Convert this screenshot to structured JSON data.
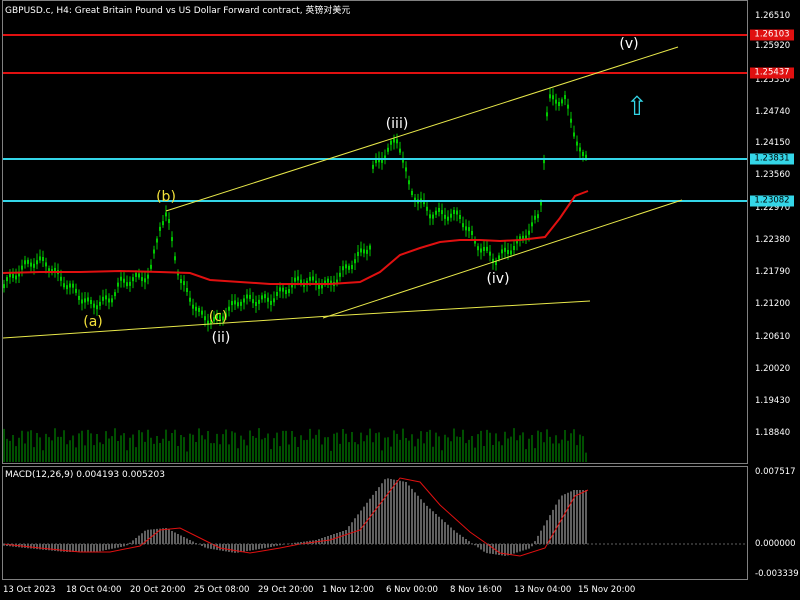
{
  "header": {
    "title": "GBPUSD.c, H4:  Great Britain Pound vs US Dollar Forward contract, 英镑对美元"
  },
  "indicator": {
    "title": "MACD(12,26,9) 0.004193 0.005203",
    "scale": [
      "0.007517",
      "0.000000",
      "-0.003339"
    ]
  },
  "price_scale": [
    "1.26510",
    "1.25920",
    "1.25330",
    "1.24740",
    "1.24150",
    "1.23560",
    "1.22970",
    "1.22380",
    "1.21790",
    "1.21200",
    "1.20610",
    "1.20020",
    "1.19430",
    "1.18840"
  ],
  "price_badges": [
    {
      "value": "1.26103",
      "bg": "#e01010",
      "fg": "#ffffff"
    },
    {
      "value": "1.25437",
      "bg": "#e01010",
      "fg": "#ffffff"
    },
    {
      "value": "1.23831",
      "bg": "#34d6e8",
      "fg": "#000000"
    },
    {
      "value": "1.23082",
      "bg": "#34d6e8",
      "fg": "#000000"
    }
  ],
  "time_scale": [
    "13 Oct 2023",
    "18 Oct 04:00",
    "20 Oct 20:00",
    "25 Oct 08:00",
    "29 Oct 20:00",
    "1 Nov 12:00",
    "6 Nov 00:00",
    "8 Nov 16:00",
    "13 Nov 04:00",
    "15 Nov 20:00"
  ],
  "wave_labels": {
    "a": "(a)",
    "b": "(b)",
    "c": "(c)",
    "ii": "(ii)",
    "iii": "(iii)",
    "iv": "(iv)",
    "v": "(v)"
  },
  "signal": {
    "icon": "up-arrow-icon"
  },
  "colors": {
    "background": "#000000",
    "candles": "#00c800",
    "resistance": "#e01010",
    "support": "#34d6e8",
    "channel": "#e8e84a",
    "moving_average": "#e01010",
    "macd_histogram": "#c0c0c0",
    "macd_signal": "#e01010"
  }
}
